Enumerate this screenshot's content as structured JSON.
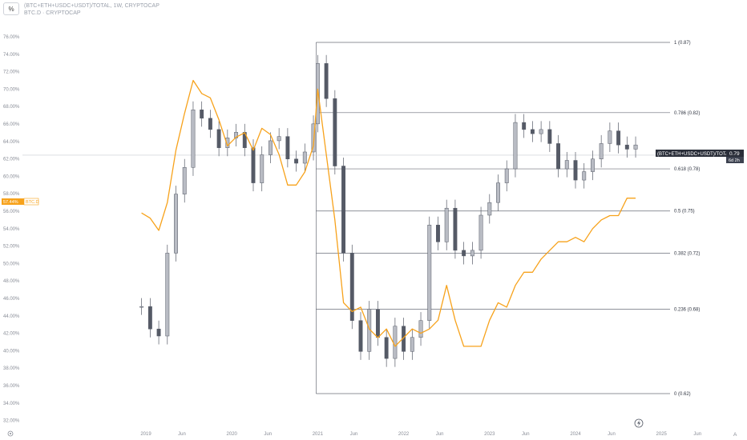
{
  "header": {
    "percent_button": "%",
    "symbol_title": "(BTC+ETH+USDC+USDT)/TOTAL, 1W, CRYPTOCAP",
    "secondary_title": "BTC.D · CRYPTOCAP"
  },
  "colors": {
    "candle": "#555a66",
    "candle_light": "#b9bcc4",
    "btc_d": "#f7a21b",
    "fib_line": "#6a6e78",
    "grid_text": "#888c96",
    "price_tag": "#2a2e39"
  },
  "icons": {
    "lightning": "lightning-icon",
    "settings": "settings-icon",
    "auto": "auto-scale-icon"
  },
  "price_tag": {
    "label": "(BTC+ETH+USDC+USDT)/TOTAL",
    "value": "0.79",
    "countdown": "6d 2h"
  },
  "btc_d_tag": {
    "value": "57.44%",
    "label": "BTC.D"
  },
  "bottom_right_label": "A",
  "chart_data": {
    "type": "line",
    "xlabel": "",
    "ylabel": "",
    "x_range": [
      "2018-12",
      "2025-12"
    ],
    "ylim_percent": [
      31.5,
      77.5
    ],
    "ylim_ratio": [
      0.615,
      0.89
    ],
    "y_ticks": [
      "32.00%",
      "34.00%",
      "36.00%",
      "38.00%",
      "40.00%",
      "42.00%",
      "44.00%",
      "46.00%",
      "48.00%",
      "50.00%",
      "52.00%",
      "54.00%",
      "56.00%",
      "58.00%",
      "60.00%",
      "62.00%",
      "64.00%",
      "66.00%",
      "68.00%",
      "70.00%",
      "72.00%",
      "74.00%",
      "76.00%"
    ],
    "x_ticks": [
      {
        "label": "2019",
        "t": 2019.0
      },
      {
        "label": "Jun",
        "t": 2019.42
      },
      {
        "label": "2020",
        "t": 2020.0
      },
      {
        "label": "Jun",
        "t": 2020.42
      },
      {
        "label": "2021",
        "t": 2021.0
      },
      {
        "label": "Jun",
        "t": 2021.42
      },
      {
        "label": "2022",
        "t": 2022.0
      },
      {
        "label": "Jun",
        "t": 2022.42
      },
      {
        "label": "2023",
        "t": 2023.0
      },
      {
        "label": "Jun",
        "t": 2023.42
      },
      {
        "label": "2024",
        "t": 2024.0
      },
      {
        "label": "Jun",
        "t": 2024.42
      },
      {
        "label": "2025",
        "t": 2025.0
      },
      {
        "label": "Jun",
        "t": 2025.42
      }
    ],
    "fib_levels": [
      {
        "label": "1 (0.87)",
        "value": 0.87
      },
      {
        "label": "0.786 (0.82)",
        "value": 0.82
      },
      {
        "label": "0.618 (0.78)",
        "value": 0.78
      },
      {
        "label": "0.5 (0.75)",
        "value": 0.75
      },
      {
        "label": "0.382 (0.72)",
        "value": 0.72
      },
      {
        "label": "0.236 (0.68)",
        "value": 0.68
      },
      {
        "label": "0 (0.62)",
        "value": 0.62
      }
    ],
    "fib_start_t": 2021.0,
    "fib_end_t": 2024.98,
    "current_price_line": 0.79,
    "series": [
      {
        "name": "(BTC+ETH+USDC+USDT)/TOTAL",
        "style": "candles",
        "x": [
          2018.95,
          2019.05,
          2019.15,
          2019.25,
          2019.35,
          2019.45,
          2019.55,
          2019.65,
          2019.75,
          2019.85,
          2019.95,
          2020.05,
          2020.15,
          2020.25,
          2020.35,
          2020.45,
          2020.55,
          2020.65,
          2020.75,
          2020.85,
          2020.95,
          2021.0,
          2021.1,
          2021.2,
          2021.3,
          2021.4,
          2021.5,
          2021.6,
          2021.7,
          2021.8,
          2021.9,
          2022.0,
          2022.1,
          2022.2,
          2022.3,
          2022.4,
          2022.5,
          2022.6,
          2022.7,
          2022.8,
          2022.9,
          2023.0,
          2023.1,
          2023.2,
          2023.3,
          2023.4,
          2023.5,
          2023.6,
          2023.7,
          2023.8,
          2023.9,
          2024.0,
          2024.1,
          2024.2,
          2024.3,
          2024.4,
          2024.5,
          2024.6,
          2024.7
        ],
        "values": [
          0.682,
          0.666,
          0.661,
          0.72,
          0.762,
          0.781,
          0.822,
          0.816,
          0.808,
          0.795,
          0.802,
          0.806,
          0.795,
          0.77,
          0.79,
          0.8,
          0.803,
          0.787,
          0.784,
          0.792,
          0.812,
          0.855,
          0.83,
          0.782,
          0.72,
          0.672,
          0.65,
          0.68,
          0.66,
          0.645,
          0.668,
          0.65,
          0.66,
          0.672,
          0.74,
          0.728,
          0.752,
          0.722,
          0.718,
          0.722,
          0.747,
          0.756,
          0.77,
          0.78,
          0.813,
          0.808,
          0.805,
          0.808,
          0.798,
          0.78,
          0.786,
          0.772,
          0.778,
          0.787,
          0.798,
          0.807,
          0.797,
          0.794,
          0.797
        ]
      },
      {
        "name": "BTC.D",
        "style": "line",
        "x": [
          2018.95,
          2019.05,
          2019.15,
          2019.25,
          2019.35,
          2019.45,
          2019.55,
          2019.65,
          2019.75,
          2019.85,
          2019.95,
          2020.05,
          2020.15,
          2020.25,
          2020.35,
          2020.45,
          2020.55,
          2020.65,
          2020.75,
          2020.85,
          2020.95,
          2021.0,
          2021.1,
          2021.2,
          2021.3,
          2021.4,
          2021.5,
          2021.6,
          2021.7,
          2021.8,
          2021.9,
          2022.0,
          2022.1,
          2022.2,
          2022.3,
          2022.4,
          2022.5,
          2022.6,
          2022.7,
          2022.8,
          2022.9,
          2023.0,
          2023.1,
          2023.2,
          2023.3,
          2023.4,
          2023.5,
          2023.6,
          2023.7,
          2023.8,
          2023.9,
          2024.0,
          2024.1,
          2024.2,
          2024.3,
          2024.4,
          2024.5,
          2024.6,
          2024.7
        ],
        "values": [
          55.8,
          55.2,
          53.8,
          57.0,
          63.0,
          67.2,
          71.0,
          69.5,
          69.0,
          66.5,
          63.5,
          64.5,
          65.0,
          63.0,
          65.5,
          64.8,
          62.5,
          59.0,
          59.0,
          60.5,
          63.5,
          70.0,
          62.5,
          55.0,
          45.5,
          44.5,
          45.0,
          42.5,
          41.5,
          42.5,
          40.5,
          41.5,
          42.5,
          42.0,
          42.5,
          43.5,
          47.5,
          43.5,
          40.5,
          40.5,
          40.5,
          43.5,
          45.5,
          45.0,
          47.5,
          49.0,
          49.0,
          50.5,
          51.5,
          52.5,
          52.5,
          53.0,
          52.5,
          54.0,
          55.0,
          55.5,
          55.5,
          57.5,
          57.5
        ]
      }
    ]
  }
}
